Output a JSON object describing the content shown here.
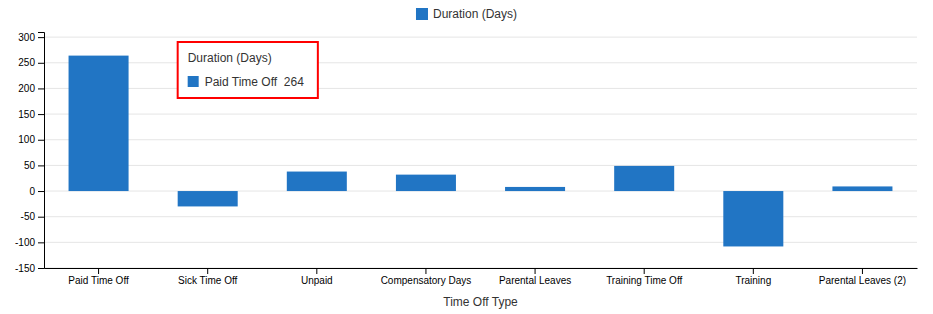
{
  "chart_data": {
    "type": "bar",
    "xlabel": "Time Off Type",
    "categories": [
      "Paid Time Off",
      "Sick Time Off",
      "Unpaid",
      "Compensatory Days",
      "Parental Leaves",
      "Training Time Off",
      "Training",
      "Parental Leaves (2)"
    ],
    "series": [
      {
        "name": "Duration (Days)",
        "color": "#2175c4",
        "values": [
          264,
          -30,
          38,
          32,
          8,
          49,
          -108,
          9
        ]
      }
    ],
    "ylim": [
      -150,
      310
    ],
    "yticks": [
      -150,
      -100,
      -50,
      0,
      50,
      100,
      150,
      200,
      250,
      300
    ],
    "grid": true,
    "legend": "top",
    "annotations": [
      "Duration (Days)",
      "Paid Time Off  264"
    ]
  }
}
